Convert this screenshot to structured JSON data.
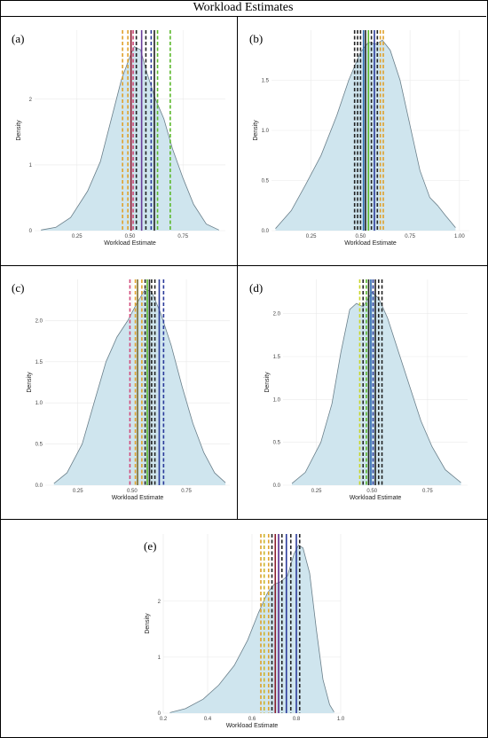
{
  "figure": {
    "title": "Workload Estimates"
  },
  "colors": {
    "fill": "#cfe5ee",
    "outline": "#6a7f8a",
    "grid": "#e9e9e9"
  },
  "chart_data": [
    {
      "panel": "(a)",
      "type": "area",
      "xlabel": "Workload Estimate",
      "ylabel": "Density",
      "xlim": [
        0.05,
        0.95
      ],
      "ylim": [
        0,
        3.05
      ],
      "xticks": [
        {
          "v": 0.25,
          "label": "0.25"
        },
        {
          "v": 0.5,
          "label": "0.50"
        },
        {
          "v": 0.75,
          "label": "0.75"
        }
      ],
      "yticks": [
        {
          "v": 0,
          "label": "0"
        },
        {
          "v": 1,
          "label": "1"
        },
        {
          "v": 2,
          "label": "2"
        }
      ],
      "density": [
        [
          0.08,
          0.01
        ],
        [
          0.15,
          0.05
        ],
        [
          0.22,
          0.2
        ],
        [
          0.3,
          0.6
        ],
        [
          0.36,
          1.05
        ],
        [
          0.42,
          1.8
        ],
        [
          0.46,
          2.3
        ],
        [
          0.5,
          2.65
        ],
        [
          0.52,
          2.8
        ],
        [
          0.55,
          2.75
        ],
        [
          0.58,
          2.4
        ],
        [
          0.62,
          2.0
        ],
        [
          0.66,
          1.7
        ],
        [
          0.7,
          1.25
        ],
        [
          0.75,
          0.8
        ],
        [
          0.8,
          0.4
        ],
        [
          0.86,
          0.1
        ],
        [
          0.92,
          0.01
        ]
      ],
      "vlines": [
        {
          "x": 0.465,
          "color": "#e0a12a",
          "style": "dashed"
        },
        {
          "x": 0.49,
          "color": "#e0a12a",
          "style": "dashed"
        },
        {
          "x": 0.505,
          "color": "#8b1d2e",
          "style": "solid"
        },
        {
          "x": 0.515,
          "color": "#d14a7a",
          "style": "dashed"
        },
        {
          "x": 0.53,
          "color": "#222222",
          "style": "dashed"
        },
        {
          "x": 0.555,
          "color": "#6a3d9a",
          "style": "solid"
        },
        {
          "x": 0.575,
          "color": "#222222",
          "style": "dashed"
        },
        {
          "x": 0.6,
          "color": "#2a3a9a",
          "style": "dashed"
        },
        {
          "x": 0.615,
          "color": "#222222",
          "style": "solid"
        },
        {
          "x": 0.63,
          "color": "#5ab82a",
          "style": "dashed"
        },
        {
          "x": 0.69,
          "color": "#5ab82a",
          "style": "dashed"
        }
      ]
    },
    {
      "panel": "(b)",
      "type": "area",
      "xlabel": "Workload Estimate",
      "ylabel": "Density",
      "xlim": [
        0.05,
        1.05
      ],
      "ylim": [
        0,
        2.0
      ],
      "xticks": [
        {
          "v": 0.25,
          "label": "0.25"
        },
        {
          "v": 0.5,
          "label": "0.50"
        },
        {
          "v": 0.75,
          "label": "0.75"
        },
        {
          "v": 1.0,
          "label": "1.00"
        }
      ],
      "yticks": [
        {
          "v": 0,
          "label": "0.0"
        },
        {
          "v": 0.5,
          "label": "0.5"
        },
        {
          "v": 1.0,
          "label": "1.0"
        },
        {
          "v": 1.5,
          "label": "1.5"
        }
      ],
      "density": [
        [
          0.07,
          0.02
        ],
        [
          0.15,
          0.2
        ],
        [
          0.22,
          0.45
        ],
        [
          0.3,
          0.75
        ],
        [
          0.38,
          1.15
        ],
        [
          0.44,
          1.5
        ],
        [
          0.5,
          1.78
        ],
        [
          0.54,
          1.88
        ],
        [
          0.58,
          1.86
        ],
        [
          0.61,
          1.9
        ],
        [
          0.65,
          1.8
        ],
        [
          0.7,
          1.5
        ],
        [
          0.75,
          1.05
        ],
        [
          0.8,
          0.6
        ],
        [
          0.85,
          0.33
        ],
        [
          0.89,
          0.25
        ],
        [
          0.93,
          0.15
        ],
        [
          0.98,
          0.03
        ]
      ],
      "vlines": [
        {
          "x": 0.47,
          "color": "#222222",
          "style": "dashed"
        },
        {
          "x": 0.485,
          "color": "#222222",
          "style": "dashed"
        },
        {
          "x": 0.5,
          "color": "#222222",
          "style": "dashed"
        },
        {
          "x": 0.515,
          "color": "#2a6ab0",
          "style": "solid"
        },
        {
          "x": 0.525,
          "color": "#222222",
          "style": "solid"
        },
        {
          "x": 0.54,
          "color": "#5ab82a",
          "style": "solid"
        },
        {
          "x": 0.555,
          "color": "#222222",
          "style": "dashed"
        },
        {
          "x": 0.57,
          "color": "#2a3a9a",
          "style": "solid"
        },
        {
          "x": 0.585,
          "color": "#222222",
          "style": "dashed"
        },
        {
          "x": 0.6,
          "color": "#e0a12a",
          "style": "dashed"
        },
        {
          "x": 0.615,
          "color": "#e0a12a",
          "style": "dashed"
        }
      ]
    },
    {
      "panel": "(c)",
      "type": "area",
      "xlabel": "Workload Estimate",
      "ylabel": "Density",
      "xlim": [
        0.1,
        0.95
      ],
      "ylim": [
        0,
        2.5
      ],
      "xticks": [
        {
          "v": 0.25,
          "label": "0.25"
        },
        {
          "v": 0.5,
          "label": "0.50"
        },
        {
          "v": 0.75,
          "label": "0.75"
        }
      ],
      "yticks": [
        {
          "v": 0,
          "label": "0.0"
        },
        {
          "v": 0.5,
          "label": "0.5"
        },
        {
          "v": 1.0,
          "label": "1.0"
        },
        {
          "v": 1.5,
          "label": "1.5"
        },
        {
          "v": 2.0,
          "label": "2.0"
        }
      ],
      "density": [
        [
          0.14,
          0.02
        ],
        [
          0.2,
          0.15
        ],
        [
          0.27,
          0.5
        ],
        [
          0.33,
          1.05
        ],
        [
          0.38,
          1.5
        ],
        [
          0.43,
          1.8
        ],
        [
          0.48,
          2.0
        ],
        [
          0.52,
          2.2
        ],
        [
          0.56,
          2.38
        ],
        [
          0.59,
          2.35
        ],
        [
          0.63,
          2.1
        ],
        [
          0.68,
          1.7
        ],
        [
          0.73,
          1.2
        ],
        [
          0.78,
          0.75
        ],
        [
          0.83,
          0.4
        ],
        [
          0.88,
          0.15
        ],
        [
          0.93,
          0.03
        ]
      ],
      "vlines": [
        {
          "x": 0.49,
          "color": "#d14a7a",
          "style": "dashed"
        },
        {
          "x": 0.515,
          "color": "#e0a12a",
          "style": "dashed"
        },
        {
          "x": 0.525,
          "color": "#7a6a2a",
          "style": "solid"
        },
        {
          "x": 0.545,
          "color": "#e0a12a",
          "style": "dashed"
        },
        {
          "x": 0.56,
          "color": "#222222",
          "style": "dashed"
        },
        {
          "x": 0.57,
          "color": "#5ab82a",
          "style": "solid"
        },
        {
          "x": 0.58,
          "color": "#222222",
          "style": "solid"
        },
        {
          "x": 0.59,
          "color": "#222222",
          "style": "dashed"
        },
        {
          "x": 0.605,
          "color": "#222222",
          "style": "dashed"
        },
        {
          "x": 0.625,
          "color": "#2a3a9a",
          "style": "solid"
        },
        {
          "x": 0.645,
          "color": "#2a3a9a",
          "style": "dashed"
        }
      ]
    },
    {
      "panel": "(d)",
      "type": "area",
      "xlabel": "Workload Estimate",
      "ylabel": "Density",
      "xlim": [
        0.1,
        0.93
      ],
      "ylim": [
        0,
        2.4
      ],
      "xticks": [
        {
          "v": 0.25,
          "label": "0.25"
        },
        {
          "v": 0.5,
          "label": "0.50"
        },
        {
          "v": 0.75,
          "label": "0.75"
        }
      ],
      "yticks": [
        {
          "v": 0,
          "label": "0.0"
        },
        {
          "v": 0.5,
          "label": "0.5"
        },
        {
          "v": 1.0,
          "label": "1.0"
        },
        {
          "v": 1.5,
          "label": "1.5"
        },
        {
          "v": 2.0,
          "label": "2.0"
        }
      ],
      "density": [
        [
          0.14,
          0.02
        ],
        [
          0.2,
          0.15
        ],
        [
          0.27,
          0.5
        ],
        [
          0.32,
          0.95
        ],
        [
          0.36,
          1.55
        ],
        [
          0.4,
          2.05
        ],
        [
          0.43,
          2.12
        ],
        [
          0.46,
          2.08
        ],
        [
          0.5,
          2.25
        ],
        [
          0.53,
          2.18
        ],
        [
          0.57,
          1.95
        ],
        [
          0.62,
          1.55
        ],
        [
          0.67,
          1.15
        ],
        [
          0.72,
          0.75
        ],
        [
          0.77,
          0.45
        ],
        [
          0.83,
          0.18
        ],
        [
          0.9,
          0.03
        ]
      ],
      "vlines": [
        {
          "x": 0.445,
          "color": "#c9d62a",
          "style": "dashed"
        },
        {
          "x": 0.46,
          "color": "#222222",
          "style": "dashed"
        },
        {
          "x": 0.475,
          "color": "#5ab82a",
          "style": "dashed"
        },
        {
          "x": 0.485,
          "color": "#222222",
          "style": "solid"
        },
        {
          "x": 0.495,
          "color": "#2a6ab0",
          "style": "solid"
        },
        {
          "x": 0.505,
          "color": "#2a3a9a",
          "style": "dashed"
        },
        {
          "x": 0.515,
          "color": "#222222",
          "style": "solid"
        },
        {
          "x": 0.53,
          "color": "#222222",
          "style": "dashed"
        },
        {
          "x": 0.545,
          "color": "#222222",
          "style": "dashed"
        }
      ]
    },
    {
      "panel": "(e)",
      "type": "area",
      "xlabel": "Workload Estimate",
      "ylabel": "Density",
      "xlim": [
        0.2,
        1.0
      ],
      "ylim": [
        0,
        3.2
      ],
      "xticks": [
        {
          "v": 0.2,
          "label": "0.2"
        },
        {
          "v": 0.4,
          "label": "0.4"
        },
        {
          "v": 0.6,
          "label": "0.6"
        },
        {
          "v": 0.8,
          "label": "0.8"
        },
        {
          "v": 1.0,
          "label": "1.0"
        }
      ],
      "yticks": [
        {
          "v": 0,
          "label": "0"
        },
        {
          "v": 1,
          "label": "1"
        },
        {
          "v": 2,
          "label": "2"
        }
      ],
      "density": [
        [
          0.23,
          0.01
        ],
        [
          0.3,
          0.08
        ],
        [
          0.38,
          0.25
        ],
        [
          0.45,
          0.5
        ],
        [
          0.52,
          0.85
        ],
        [
          0.58,
          1.3
        ],
        [
          0.63,
          1.8
        ],
        [
          0.67,
          2.15
        ],
        [
          0.7,
          2.3
        ],
        [
          0.73,
          2.35
        ],
        [
          0.76,
          2.45
        ],
        [
          0.79,
          2.85
        ],
        [
          0.81,
          3.0
        ],
        [
          0.83,
          2.95
        ],
        [
          0.86,
          2.5
        ],
        [
          0.89,
          1.5
        ],
        [
          0.92,
          0.6
        ],
        [
          0.95,
          0.15
        ],
        [
          0.97,
          0.02
        ]
      ],
      "vlines": [
        {
          "x": 0.64,
          "color": "#e0a12a",
          "style": "dashed"
        },
        {
          "x": 0.655,
          "color": "#c9b62a",
          "style": "dashed"
        },
        {
          "x": 0.675,
          "color": "#e0a12a",
          "style": "dashed"
        },
        {
          "x": 0.69,
          "color": "#222222",
          "style": "dashed"
        },
        {
          "x": 0.705,
          "color": "#8b1d2e",
          "style": "solid"
        },
        {
          "x": 0.72,
          "color": "#5a2a8a",
          "style": "solid"
        },
        {
          "x": 0.735,
          "color": "#222222",
          "style": "dashed"
        },
        {
          "x": 0.755,
          "color": "#2a3a9a",
          "style": "solid"
        },
        {
          "x": 0.775,
          "color": "#222222",
          "style": "dashed"
        },
        {
          "x": 0.8,
          "color": "#2a3a9a",
          "style": "solid"
        },
        {
          "x": 0.815,
          "color": "#222222",
          "style": "dashed"
        }
      ]
    }
  ]
}
